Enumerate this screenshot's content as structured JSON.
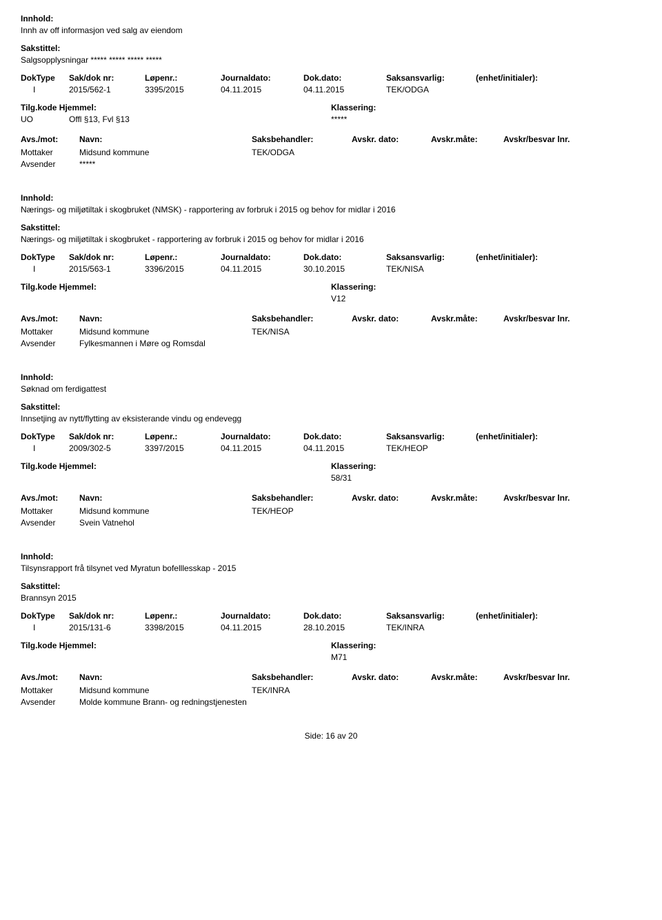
{
  "labels": {
    "innhold": "Innhold:",
    "sakstittel": "Sakstittel:",
    "doktype": "DokType",
    "sakdok": "Sak/dok nr:",
    "lopenr": "Løpenr.:",
    "journaldato": "Journaldato:",
    "dokdato": "Dok.dato:",
    "saksansvarlig": "Saksansvarlig:",
    "enhet": "(enhet/initialer):",
    "tilgkode": "Tilg.kode",
    "hjemmel": "Hjemmel:",
    "klassering": "Klassering:",
    "avsmot": "Avs./mot:",
    "navn": "Navn:",
    "saksbehandler": "Saksbehandler:",
    "avskrdato": "Avskr. dato:",
    "avskrmate": "Avskr.måte:",
    "avskrbesvar": "Avskr/besvar lnr.",
    "mottaker": "Mottaker",
    "avsender": "Avsender"
  },
  "entries": [
    {
      "innhold": "Innh av off informasjon ved salg av eiendom",
      "sakstittel": "Salgsopplysningar ***** ***** ***** *****",
      "doktype": "I",
      "sakdok": "2015/562-1",
      "lopenr": "3395/2015",
      "journaldato": "04.11.2015",
      "dokdato": "04.11.2015",
      "saksansvarlig": "TEK/ODGA",
      "tilgkode": "UO",
      "hjemmel": "Offl §13, Fvl §13",
      "klassering": "*****",
      "mottaker": "Midsund kommune",
      "saksbehandler": "TEK/ODGA",
      "avsender": "*****"
    },
    {
      "innhold": "Nærings- og miljøtiltak i skogbruket (NMSK) - rapportering av forbruk i 2015 og behov for midlar i 2016",
      "sakstittel": "Nærings- og miljøtiltak i skogbruket - rapportering av forbruk i 2015 og behov for midlar i 2016",
      "doktype": "I",
      "sakdok": "2015/563-1",
      "lopenr": "3396/2015",
      "journaldato": "04.11.2015",
      "dokdato": "30.10.2015",
      "saksansvarlig": "TEK/NISA",
      "tilgkode": "",
      "hjemmel": "",
      "klassering": "V12",
      "mottaker": "Midsund kommune",
      "saksbehandler": "TEK/NISA",
      "avsender": "Fylkesmannen i Møre og Romsdal"
    },
    {
      "innhold": "Søknad om ferdigattest",
      "sakstittel": "Innsetjing av nytt/flytting av eksisterande vindu og endevegg",
      "doktype": "I",
      "sakdok": "2009/302-5",
      "lopenr": "3397/2015",
      "journaldato": "04.11.2015",
      "dokdato": "04.11.2015",
      "saksansvarlig": "TEK/HEOP",
      "tilgkode": "",
      "hjemmel": "",
      "klassering": "58/31",
      "mottaker": "Midsund kommune",
      "saksbehandler": "TEK/HEOP",
      "avsender": "Svein Vatnehol"
    },
    {
      "innhold": "Tilsynsrapport frå tilsynet ved Myratun bofelllesskap - 2015",
      "sakstittel": "Brannsyn 2015",
      "doktype": "I",
      "sakdok": "2015/131-6",
      "lopenr": "3398/2015",
      "journaldato": "04.11.2015",
      "dokdato": "28.10.2015",
      "saksansvarlig": "TEK/INRA",
      "tilgkode": "",
      "hjemmel": "",
      "klassering": "M71",
      "mottaker": "Midsund kommune",
      "saksbehandler": "TEK/INRA",
      "avsender": "Molde kommune  Brann- og redningstjenesten"
    }
  ],
  "footer": {
    "side_label": "Side:",
    "page": "16",
    "av": "av",
    "total": "20"
  }
}
